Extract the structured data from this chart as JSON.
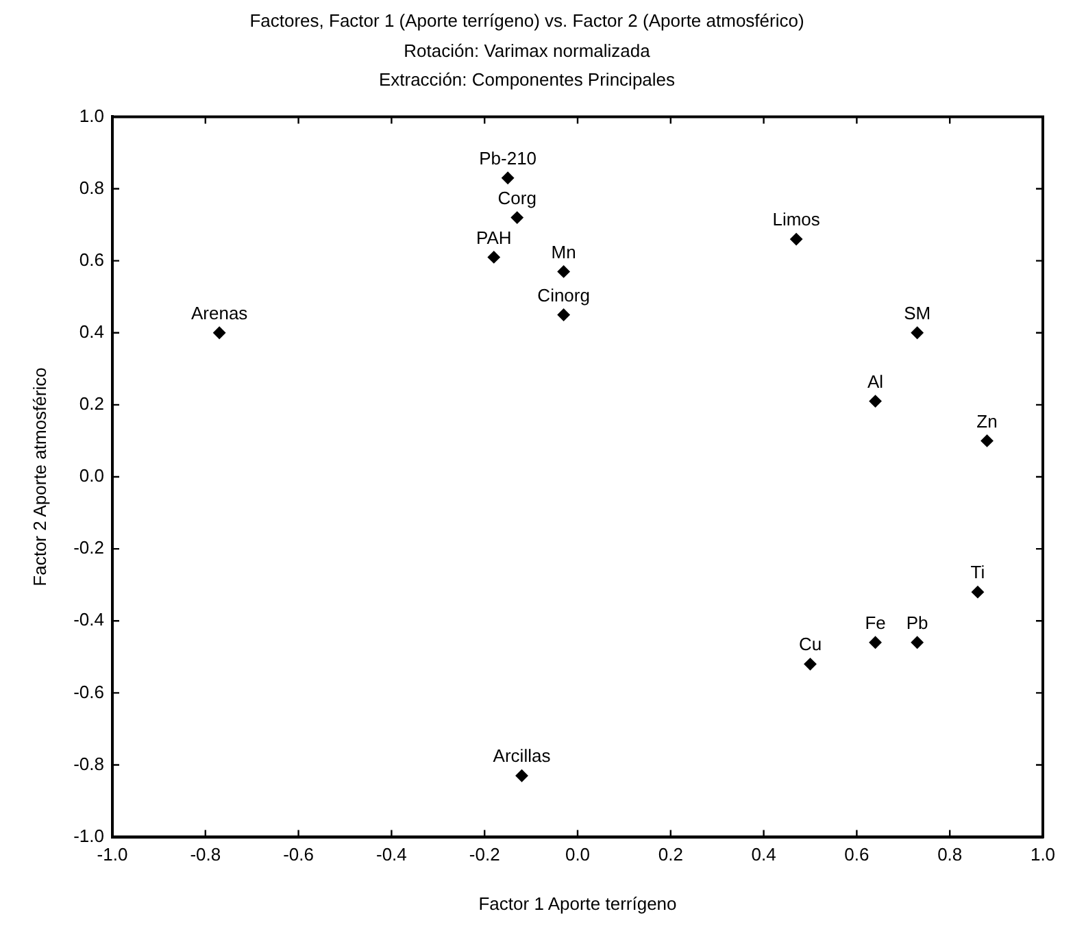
{
  "chart_data": {
    "type": "scatter",
    "title": "Factores, Factor 1 (Aporte terrígeno) vs. Factor 2 (Aporte atmosférico)",
    "subtitle": "Rotación: Varimax normalizada\nExtracción: Componentes Principales",
    "xlabel": "Factor 1 Aporte terrígeno",
    "ylabel": "Factor 2 Aporte atmosférico",
    "x": [
      -0.15,
      -0.13,
      -0.18,
      -0.03,
      -0.03,
      -0.77,
      0.47,
      0.73,
      0.64,
      0.88,
      -0.12,
      0.86,
      0.64,
      0.73,
      0.5
    ],
    "values": [
      0.83,
      0.72,
      0.61,
      0.57,
      0.45,
      0.4,
      0.66,
      0.4,
      0.21,
      0.1,
      -0.83,
      -0.32,
      -0.46,
      -0.46,
      -0.52
    ],
    "color": "#000000",
    "marker": "diamond",
    "grid": false,
    "legend": false,
    "xlim": [
      -1.0,
      1.0
    ],
    "xticks": [
      {
        "value": -1,
        "label": "-1.0"
      },
      {
        "value": -0.8,
        "label": "-0.8"
      },
      {
        "value": -0.6,
        "label": "-0.6"
      },
      {
        "value": -0.4,
        "label": "-0.4"
      },
      {
        "value": -0.2,
        "label": "-0.2"
      },
      {
        "value": 0,
        "label": "0.0"
      },
      {
        "value": 0.2,
        "label": "0.2"
      },
      {
        "value": 0.4,
        "label": "0.4"
      },
      {
        "value": 0.6,
        "label": "0.6"
      },
      {
        "value": 0.8,
        "label": "0.8"
      },
      {
        "value": 1,
        "label": "1.0"
      }
    ],
    "ylim": [
      -1.0,
      1.0
    ],
    "yticks": [
      {
        "value": -1,
        "label": "-1.0"
      },
      {
        "value": -0.8,
        "label": "-0.8"
      },
      {
        "value": -0.6,
        "label": "-0.6"
      },
      {
        "value": -0.4,
        "label": "-0.4"
      },
      {
        "value": -0.2,
        "label": "-0.2"
      },
      {
        "value": 0,
        "label": "0.0"
      },
      {
        "value": 0.2,
        "label": "0.2"
      },
      {
        "value": 0.4,
        "label": "0.4"
      },
      {
        "value": 0.6,
        "label": "0.6"
      },
      {
        "value": 0.8,
        "label": "0.8"
      },
      {
        "value": 1,
        "label": "1.0"
      }
    ],
    "annotations": [
      {
        "text": "Pb-210",
        "x": -0.15,
        "y": 0.83
      },
      {
        "text": "Corg",
        "x": -0.13,
        "y": 0.72
      },
      {
        "text": "PAH",
        "x": -0.18,
        "y": 0.61
      },
      {
        "text": "Mn",
        "x": -0.03,
        "y": 0.57
      },
      {
        "text": "Cinorg",
        "x": -0.03,
        "y": 0.45
      },
      {
        "text": "Arenas",
        "x": -0.77,
        "y": 0.4
      },
      {
        "text": "Limos",
        "x": 0.47,
        "y": 0.66
      },
      {
        "text": "SM",
        "x": 0.73,
        "y": 0.4
      },
      {
        "text": "Al",
        "x": 0.64,
        "y": 0.21
      },
      {
        "text": "Zn",
        "x": 0.88,
        "y": 0.1
      },
      {
        "text": "Arcillas",
        "x": -0.12,
        "y": -0.83
      },
      {
        "text": "Ti",
        "x": 0.86,
        "y": -0.32
      },
      {
        "text": "Fe",
        "x": 0.64,
        "y": -0.46
      },
      {
        "text": "Pb",
        "x": 0.73,
        "y": -0.46
      },
      {
        "text": "Cu",
        "x": 0.5,
        "y": -0.52
      }
    ]
  }
}
